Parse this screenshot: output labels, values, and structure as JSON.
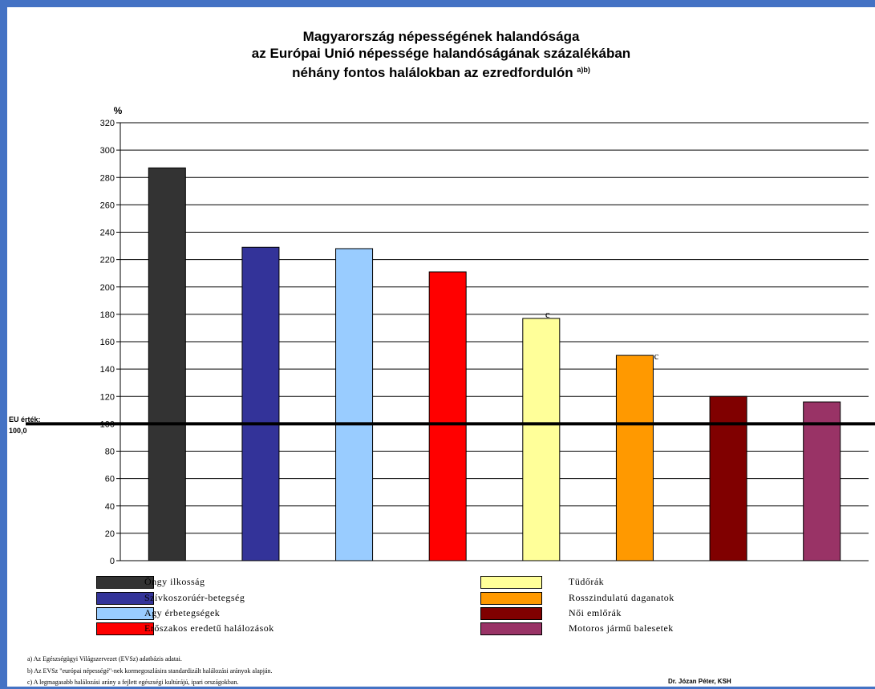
{
  "chart_data": {
    "type": "bar",
    "title_lines": [
      "Magyarország népességének halandósága",
      "az Európai Unió népessége halandóságának százalékában",
      "néhány fontos halálokban az ezredfordulón"
    ],
    "title_superscript": "a)b)",
    "ylabel": "%",
    "ylim": [
      0,
      320
    ],
    "yticks": [
      0,
      20,
      40,
      60,
      80,
      100,
      120,
      140,
      160,
      180,
      200,
      220,
      240,
      260,
      280,
      300,
      320
    ],
    "grid": true,
    "categories": [
      "Öngy ilkosság",
      "Szívkoszorúér-betegség",
      "Agy érbetegségek",
      "Erőszakos eredetű halálozások",
      "Tüdőrák",
      "Rosszindulatú daganatok",
      "Női emlőrák",
      "Motoros jármű balesetek"
    ],
    "values": [
      287,
      229,
      228,
      211,
      177,
      150,
      120,
      116
    ],
    "colors": [
      "#333333",
      "#333399",
      "#99ccff",
      "#ff0000",
      "#ffff99",
      "#ff9900",
      "#800000",
      "#993366"
    ],
    "bar_annotations": [
      "",
      "",
      "",
      "",
      "c",
      "c",
      "",
      ""
    ],
    "reference_line": {
      "value": 100,
      "label_line1": "EU érték:",
      "label_line2": "100,0"
    },
    "legend_placement": "bottom"
  },
  "footnotes": [
    "a) Az Egészségügyi Világszervezet (EVSz) adatbázis adatai.",
    "b) Az EVSz \"európai népességé\"-nek kormegoszlásira standardizált halálozási arányok alapján.",
    "c) A legmagasabb halálozási arány a fejlett egészségi kultúrájú, ipari országokban."
  ],
  "author": "Dr. Józan Péter, KSH"
}
